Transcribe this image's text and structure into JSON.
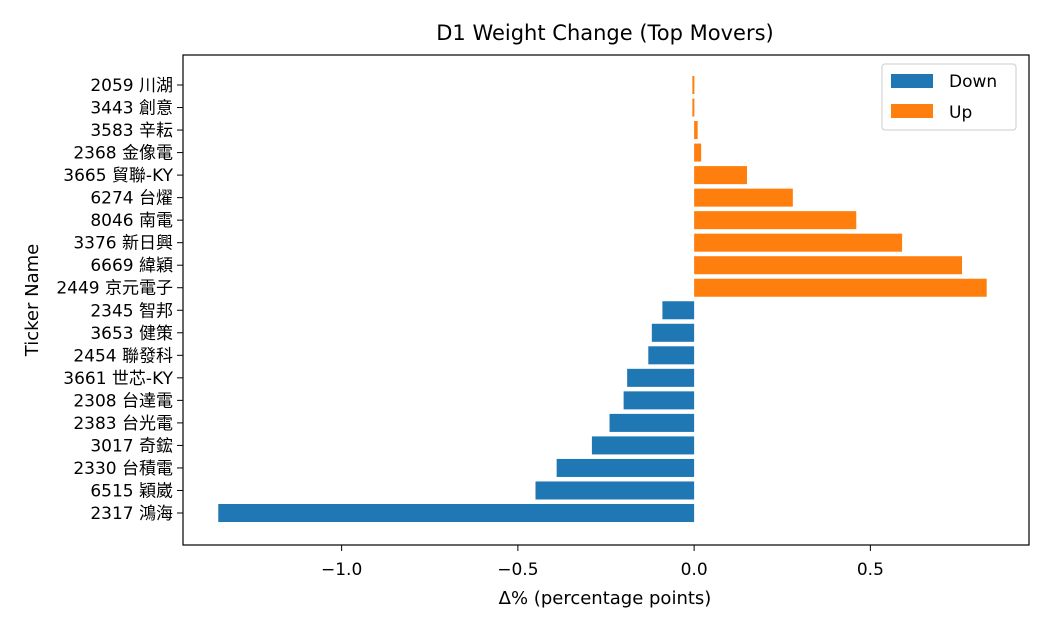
{
  "chart_data": {
    "type": "bar",
    "orientation": "horizontal",
    "title": "D1 Weight Change (Top Movers)",
    "xlabel": "Δ% (percentage points)",
    "ylabel": "Ticker Name",
    "xlim": [
      -1.45,
      0.95
    ],
    "xticks": [
      -1.0,
      -0.5,
      0.0,
      0.5
    ],
    "xtick_labels": [
      "−1.0",
      "−0.5",
      "0.0",
      "0.5"
    ],
    "categories": [
      "2317 鴻海",
      "6515 穎崴",
      "2330 台積電",
      "3017 奇鋐",
      "2383 台光電",
      "2308 台達電",
      "3661 世芯-KY",
      "2454 聯發科",
      "3653 健策",
      "2345 智邦",
      "2449 京元電子",
      "6669 緯穎",
      "3376 新日興",
      "8046 南電",
      "6274 台燿",
      "3665 貿聯-KY",
      "2368 金像電",
      "3583 辛耘",
      "3443 創意",
      "2059 川湖"
    ],
    "values": [
      -1.35,
      -0.45,
      -0.39,
      -0.29,
      -0.24,
      -0.2,
      -0.19,
      -0.13,
      -0.12,
      -0.09,
      0.83,
      0.76,
      0.59,
      0.46,
      0.28,
      0.15,
      0.02,
      0.01,
      -0.005,
      -0.005
    ],
    "series_colors": [
      "#ff7f0e",
      "#ff7f0e",
      "#ff7f0e",
      "#ff7f0e",
      "#ff7f0e",
      "#ff7f0e",
      "#ff7f0e",
      "#ff7f0e",
      "#ff7f0e",
      "#ff7f0e"
    ],
    "bar_colors": [
      "#1f77b4",
      "#1f77b4",
      "#1f77b4",
      "#1f77b4",
      "#1f77b4",
      "#1f77b4",
      "#1f77b4",
      "#1f77b4",
      "#1f77b4",
      "#1f77b4",
      "#ff7f0e",
      "#ff7f0e",
      "#ff7f0e",
      "#ff7f0e",
      "#ff7f0e",
      "#ff7f0e",
      "#ff7f0e",
      "#ff7f0e",
      "#ff7f0e",
      "#ff7f0e"
    ],
    "legend": {
      "placement": "top-right",
      "entries": [
        {
          "label": "Down",
          "color": "#1f77b4"
        },
        {
          "label": "Up",
          "color": "#ff7f0e"
        }
      ]
    },
    "grid": false
  }
}
